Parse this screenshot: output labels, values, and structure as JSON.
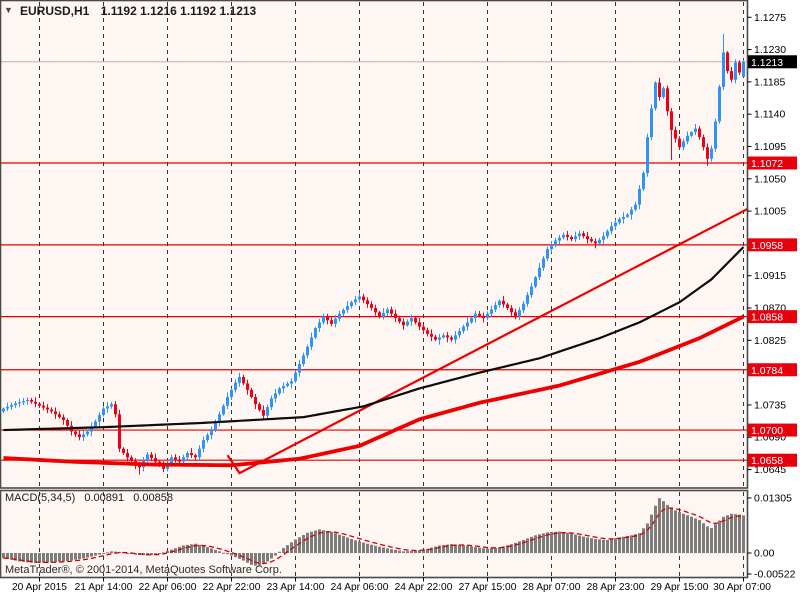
{
  "window": {
    "symbol_period": "EURUSD,H1",
    "quote_open": "1.1192",
    "quote_high": "1.1216",
    "quote_low": "1.1192",
    "quote_close": "1.1213"
  },
  "indicator_panel": {
    "name": "MACD(5,34,5)",
    "value_main": "0.00891",
    "value_signal": "0.00858"
  },
  "footer": {
    "copyright": "MetaTrader®, © 2001-2014, MetaQuotes Software Corp."
  },
  "colors": {
    "pane_background": "#fdf6f2",
    "candle_up": "#2f93fa",
    "candle_down": "#ee0016",
    "ma_black": "#0d0d0d",
    "ma_thick_red": "#ee0000",
    "trendline_red": "#ee0000",
    "level_line_red": "#e60000",
    "level_label_bg": "#e8000d",
    "current_price_line": "#b3b3b3",
    "current_price_label_bg": "#000000",
    "macd_histogram": "#7d7d7d",
    "macd_signal": "#d40000",
    "grid": "#333333",
    "axis_text": "#000000",
    "pane_border": "#4a4a4a"
  },
  "chart_data": [
    {
      "type": "candlestick",
      "symbol": "EURUSD",
      "timeframe": "H1",
      "bars_total": 186,
      "price_axis_ticks": [
        {
          "price": 1.1275,
          "label": "1.1275"
        },
        {
          "price": 1.123,
          "label": "1.1230"
        },
        {
          "price": 1.1185,
          "label": "1.1185"
        },
        {
          "price": 1.114,
          "label": "1.1140"
        },
        {
          "price": 1.1095,
          "label": "1.1095"
        },
        {
          "price": 1.105,
          "label": "1.1050"
        },
        {
          "price": 1.1005,
          "label": "1.1005"
        },
        {
          "price": 1.0915,
          "label": "1.0915"
        },
        {
          "price": 1.087,
          "label": "1.0870"
        },
        {
          "price": 1.0825,
          "label": "1.0825"
        },
        {
          "price": 1.0735,
          "label": "1.0735"
        },
        {
          "price": 1.069,
          "label": "1.0690"
        },
        {
          "price": 1.0645,
          "label": "1.0645"
        }
      ],
      "level_lines": [
        {
          "price": 1.1072,
          "label": "1.1072"
        },
        {
          "price": 1.0958,
          "label": "1.0958"
        },
        {
          "price": 1.0858,
          "label": "1.0858"
        },
        {
          "price": 1.0784,
          "label": "1.0784"
        },
        {
          "price": 1.07,
          "label": "1.0700"
        },
        {
          "price": 1.0658,
          "label": "1.0658"
        }
      ],
      "current_price": {
        "price": 1.1213,
        "label": "1.1213"
      },
      "x_labels": [
        {
          "bar": 9,
          "label": "20 Apr 2015"
        },
        {
          "bar": 25,
          "label": "21 Apr 14:00"
        },
        {
          "bar": 41,
          "label": "22 Apr 06:00"
        },
        {
          "bar": 57,
          "label": "22 Apr 22:00"
        },
        {
          "bar": 73,
          "label": "23 Apr 14:00"
        },
        {
          "bar": 89,
          "label": "24 Apr 06:00"
        },
        {
          "bar": 105,
          "label": "24 Apr 22:00"
        },
        {
          "bar": 121,
          "label": "27 Apr 15:00"
        },
        {
          "bar": 137,
          "label": "28 Apr 07:00"
        },
        {
          "bar": 153,
          "label": "28 Apr 23:00"
        },
        {
          "bar": 169,
          "label": "29 Apr 15:00"
        },
        {
          "bar": 185,
          "label": "30 Apr 07:00"
        }
      ],
      "close_anchors": [
        [
          0,
          1.073
        ],
        [
          3,
          1.0737
        ],
        [
          6,
          1.0742
        ],
        [
          9,
          1.0734
        ],
        [
          12,
          1.0726
        ],
        [
          15,
          1.0714
        ],
        [
          17,
          1.0698
        ],
        [
          19,
          1.069
        ],
        [
          21,
          1.0698
        ],
        [
          23,
          1.0712
        ],
        [
          25,
          1.073
        ],
        [
          27,
          1.0736
        ],
        [
          28,
          1.0722
        ],
        [
          29,
          1.0674
        ],
        [
          31,
          1.0662
        ],
        [
          33,
          1.0652
        ],
        [
          34,
          1.0648
        ],
        [
          36,
          1.0666
        ],
        [
          38,
          1.0656
        ],
        [
          40,
          1.0646
        ],
        [
          42,
          1.0662
        ],
        [
          44,
          1.0656
        ],
        [
          46,
          1.0668
        ],
        [
          48,
          1.0662
        ],
        [
          50,
          1.0686
        ],
        [
          52,
          1.07
        ],
        [
          54,
          1.0722
        ],
        [
          56,
          1.0746
        ],
        [
          58,
          1.0766
        ],
        [
          59,
          1.0774
        ],
        [
          61,
          1.0756
        ],
        [
          63,
          1.0736
        ],
        [
          65,
          1.072
        ],
        [
          67,
          1.0744
        ],
        [
          69,
          1.0758
        ],
        [
          72,
          1.0768
        ],
        [
          74,
          1.0792
        ],
        [
          76,
          1.0816
        ],
        [
          78,
          1.0842
        ],
        [
          80,
          1.0858
        ],
        [
          82,
          1.0848
        ],
        [
          84,
          1.0862
        ],
        [
          87,
          1.0878
        ],
        [
          89,
          1.0886
        ],
        [
          92,
          1.087
        ],
        [
          94,
          1.0858
        ],
        [
          96,
          1.0868
        ],
        [
          98,
          1.0856
        ],
        [
          100,
          1.0846
        ],
        [
          102,
          1.0856
        ],
        [
          104,
          1.0844
        ],
        [
          106,
          1.0834
        ],
        [
          108,
          1.0826
        ],
        [
          110,
          1.0832
        ],
        [
          112,
          1.0826
        ],
        [
          114,
          1.0838
        ],
        [
          116,
          1.085
        ],
        [
          118,
          1.0862
        ],
        [
          120,
          1.0856
        ],
        [
          122,
          1.0868
        ],
        [
          124,
          1.088
        ],
        [
          126,
          1.087
        ],
        [
          128,
          1.0858
        ],
        [
          130,
          1.0876
        ],
        [
          132,
          1.09
        ],
        [
          134,
          1.0926
        ],
        [
          136,
          1.0952
        ],
        [
          138,
          1.0964
        ],
        [
          140,
          1.0972
        ],
        [
          142,
          1.0966
        ],
        [
          144,
          1.0974
        ],
        [
          146,
          1.0966
        ],
        [
          148,
          1.096
        ],
        [
          150,
          1.097
        ],
        [
          152,
          1.0984
        ],
        [
          154,
          1.0994
        ],
        [
          156,
          1.1
        ],
        [
          158,
          1.1014
        ],
        [
          160,
          1.1058
        ],
        [
          161,
          1.1108
        ],
        [
          162,
          1.1148
        ],
        [
          163,
          1.1184
        ],
        [
          164,
          1.1164
        ],
        [
          165,
          1.1176
        ],
        [
          166,
          1.1144
        ],
        [
          167,
          1.1118
        ],
        [
          169,
          1.1094
        ],
        [
          171,
          1.111
        ],
        [
          173,
          1.112
        ],
        [
          174,
          1.1108
        ],
        [
          175,
          1.1094
        ],
        [
          176,
          1.1078
        ],
        [
          177,
          1.1092
        ],
        [
          178,
          1.113
        ],
        [
          179,
          1.1178
        ],
        [
          180,
          1.1226
        ],
        [
          181,
          1.12
        ],
        [
          182,
          1.1188
        ],
        [
          183,
          1.1212
        ],
        [
          184,
          1.1198
        ],
        [
          185,
          1.1213
        ]
      ],
      "last_bar_ohlc": {
        "open": 1.1192,
        "high": 1.1216,
        "low": 1.1192,
        "close": 1.1213
      },
      "extremes": [
        {
          "bar": 180,
          "high": 1.1252
        },
        {
          "bar": 34,
          "low": 1.0638
        },
        {
          "bar": 167,
          "low": 1.1076
        },
        {
          "bar": 176,
          "low": 1.1068
        }
      ],
      "overlays": {
        "ma_black_anchors": [
          [
            0,
            1.07
          ],
          [
            25,
            1.0704
          ],
          [
            50,
            1.071
          ],
          [
            75,
            1.0718
          ],
          [
            90,
            1.0733
          ],
          [
            104,
            1.0758
          ],
          [
            119,
            1.078
          ],
          [
            134,
            1.08
          ],
          [
            149,
            1.0828
          ],
          [
            159,
            1.085
          ],
          [
            169,
            1.0878
          ],
          [
            177,
            1.091
          ],
          [
            185,
            1.0955
          ]
        ],
        "ma_thick_red_anchors": [
          [
            0,
            1.0661
          ],
          [
            17,
            1.0656
          ],
          [
            37,
            1.0652
          ],
          [
            57,
            1.0651
          ],
          [
            74,
            1.066
          ],
          [
            89,
            1.0678
          ],
          [
            104,
            1.0715
          ],
          [
            119,
            1.0738
          ],
          [
            139,
            1.0762
          ],
          [
            159,
            1.0795
          ],
          [
            174,
            1.0828
          ],
          [
            185,
            1.0858
          ]
        ],
        "trendline_anchors": [
          [
            56,
            1.0665
          ],
          [
            59,
            1.064
          ],
          [
            186,
            1.1008
          ]
        ]
      }
    },
    {
      "type": "bar",
      "name": "MACD",
      "params": "5,34,5",
      "value_axis_labels": [
        {
          "value": 0.01305,
          "label": "0.01305"
        },
        {
          "value": 0.0,
          "label": "0.00"
        },
        {
          "value": -0.00522,
          "label": "-0.00522"
        }
      ],
      "histogram_anchors": [
        [
          0,
          -0.0012
        ],
        [
          4,
          -0.002
        ],
        [
          8,
          -0.0024
        ],
        [
          12,
          -0.0022
        ],
        [
          16,
          -0.0019
        ],
        [
          20,
          -0.0013
        ],
        [
          24,
          -0.0004
        ],
        [
          27,
          0.0004
        ],
        [
          30,
          0.0002
        ],
        [
          33,
          -0.0004
        ],
        [
          36,
          -0.0006
        ],
        [
          39,
          -0.0002
        ],
        [
          42,
          0.0008
        ],
        [
          45,
          0.0018
        ],
        [
          48,
          0.0022
        ],
        [
          51,
          0.0014
        ],
        [
          54,
          0.0004
        ],
        [
          57,
          -0.0006
        ],
        [
          60,
          -0.0018
        ],
        [
          62,
          -0.0028
        ],
        [
          64,
          -0.0032
        ],
        [
          66,
          -0.002
        ],
        [
          68,
          -0.0006
        ],
        [
          70,
          0.0012
        ],
        [
          73,
          0.0032
        ],
        [
          76,
          0.0048
        ],
        [
          79,
          0.0056
        ],
        [
          82,
          0.005
        ],
        [
          85,
          0.004
        ],
        [
          88,
          0.003
        ],
        [
          91,
          0.0022
        ],
        [
          94,
          0.0015
        ],
        [
          97,
          0.0009
        ],
        [
          100,
          0.0004
        ],
        [
          103,
          0.0005
        ],
        [
          106,
          0.001
        ],
        [
          109,
          0.0018
        ],
        [
          112,
          0.0021
        ],
        [
          115,
          0.0019
        ],
        [
          118,
          0.0014
        ],
        [
          121,
          0.001
        ],
        [
          124,
          0.0013
        ],
        [
          127,
          0.0021
        ],
        [
          130,
          0.0031
        ],
        [
          133,
          0.0042
        ],
        [
          136,
          0.0049
        ],
        [
          139,
          0.0051
        ],
        [
          142,
          0.0046
        ],
        [
          145,
          0.0039
        ],
        [
          148,
          0.0033
        ],
        [
          151,
          0.0031
        ],
        [
          154,
          0.0037
        ],
        [
          157,
          0.0042
        ],
        [
          159,
          0.0047
        ],
        [
          161,
          0.007
        ],
        [
          163,
          0.0112
        ],
        [
          164,
          0.013
        ],
        [
          165,
          0.0123
        ],
        [
          166,
          0.0114
        ],
        [
          168,
          0.0101
        ],
        [
          170,
          0.0093
        ],
        [
          172,
          0.0086
        ],
        [
          174,
          0.0078
        ],
        [
          176,
          0.0063
        ],
        [
          177,
          0.0059
        ],
        [
          178,
          0.0068
        ],
        [
          180,
          0.0086
        ],
        [
          182,
          0.0093
        ],
        [
          184,
          0.0091
        ],
        [
          185,
          0.0089
        ]
      ],
      "last_values": {
        "histogram": 0.00891,
        "signal": 0.00858
      }
    }
  ]
}
